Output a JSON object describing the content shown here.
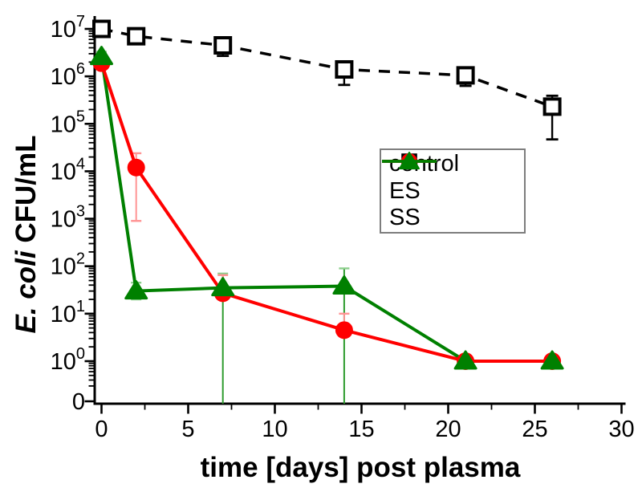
{
  "chart_data": {
    "type": "line",
    "title": "",
    "xlabel": "time [days] post plasma",
    "ylabel_italic": "E. coli",
    "ylabel_rest": " CFU/mL",
    "x_axis": {
      "label": "time [days] post plasma",
      "min": 0,
      "max": 30,
      "major_ticks": [
        0,
        5,
        10,
        15,
        20,
        25,
        30
      ],
      "minor_step": 2.5
    },
    "y_axis": {
      "scale": "log",
      "decade_exponents": [
        7,
        6,
        5,
        4,
        3,
        2,
        1,
        0
      ],
      "zero_tick_label": "0",
      "sub_one_minor_values": [
        0.9,
        0.8,
        0.7,
        0.6,
        0.5,
        0.4,
        0.3
      ],
      "grid": false
    },
    "x": [
      0,
      2,
      7,
      14,
      21,
      26
    ],
    "series": [
      {
        "name": "control",
        "label": "control",
        "color": "#000000",
        "line": "dashed",
        "marker": "open-square",
        "whisker_color": "#000000",
        "cap_color": "#000000",
        "values": [
          10000000.0,
          7000000.0,
          4500000.0,
          1400000.0,
          1050000.0,
          230000.0
        ],
        "err_lo": [
          null,
          null,
          2700000.0,
          660000.0,
          630000.0,
          47000.0
        ],
        "err_hi": [
          null,
          null,
          6000000.0,
          null,
          null,
          390000.0
        ]
      },
      {
        "name": "ES",
        "label": "ES",
        "color": "#FF0000",
        "line": "solid",
        "marker": "filled-circle",
        "whisker_color": "#FF9494",
        "cap_color": "#FF9494",
        "values": [
          1900000.0,
          12000.0,
          27,
          4.5,
          1.0,
          1.0
        ],
        "err_lo": [
          1500000.0,
          900.0,
          null,
          null,
          null,
          null
        ],
        "err_hi": [
          2300000.0,
          24000.0,
          65,
          10,
          null,
          null
        ]
      },
      {
        "name": "SS",
        "label": "SS",
        "color": "#008000",
        "line": "solid",
        "marker": "filled-triangle",
        "whisker_color": "#2E9B2E",
        "cap_color": "#8CCE8C",
        "values": [
          2600000.0,
          30,
          35,
          38,
          1.0,
          1.0
        ],
        "err_lo": [
          2100000.0,
          20,
          0,
          0,
          null,
          null
        ],
        "err_hi": [
          3300000.0,
          45,
          70,
          90,
          null,
          null
        ]
      }
    ],
    "legend": {
      "position": "upper-right-inside",
      "entries": [
        "control",
        "ES",
        "SS"
      ]
    },
    "notes": "error bars with lower bound 0 are drawn down to the x-axis"
  }
}
